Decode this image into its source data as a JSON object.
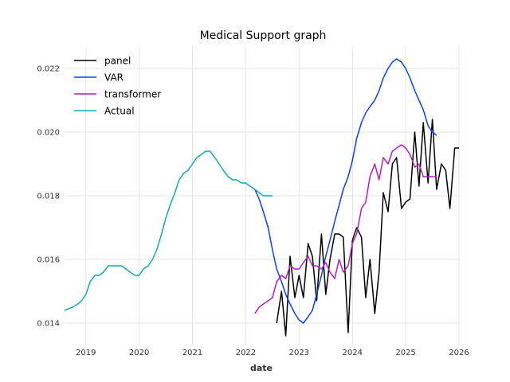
{
  "chart_data": {
    "type": "line",
    "title": "Medical Support graph",
    "xlabel": "date",
    "ylabel": "",
    "xlim": [
      2018.6,
      2026.0
    ],
    "ylim": [
      0.0133,
      0.0227
    ],
    "x_ticks": [
      2019,
      2020,
      2021,
      2022,
      2023,
      2024,
      2025,
      2026
    ],
    "x_tick_labels": [
      "2019",
      "2020",
      "2021",
      "2022",
      "2023",
      "2024",
      "2025",
      "2026"
    ],
    "y_ticks": [
      0.014,
      0.016,
      0.018,
      0.02,
      0.022
    ],
    "y_tick_labels": [
      "0.014",
      "0.016",
      "0.018",
      "0.020",
      "0.022"
    ],
    "grid": true,
    "legend_position": "top-left",
    "series": [
      {
        "name": "panel",
        "color": "#000000",
        "x": [
          2022.58,
          2022.67,
          2022.75,
          2022.83,
          2022.92,
          2023.0,
          2023.08,
          2023.17,
          2023.25,
          2023.33,
          2023.42,
          2023.5,
          2023.58,
          2023.67,
          2023.75,
          2023.83,
          2023.92,
          2024.0,
          2024.08,
          2024.17,
          2024.25,
          2024.33,
          2024.42,
          2024.5,
          2024.58,
          2024.67,
          2024.75,
          2024.83,
          2024.92,
          2025.0,
          2025.08,
          2025.17,
          2025.25,
          2025.33,
          2025.42,
          2025.5,
          2025.58,
          2025.67,
          2025.75,
          2025.83,
          2025.92,
          2026.0
        ],
        "values": [
          0.014,
          0.015,
          0.0136,
          0.0161,
          0.0148,
          0.0155,
          0.0148,
          0.0165,
          0.0161,
          0.0147,
          0.0168,
          0.0149,
          0.016,
          0.0168,
          0.0168,
          0.0167,
          0.0137,
          0.0166,
          0.017,
          0.0167,
          0.0148,
          0.016,
          0.0143,
          0.0156,
          0.0181,
          0.0175,
          0.019,
          0.0192,
          0.0176,
          0.0178,
          0.0179,
          0.02,
          0.0183,
          0.0203,
          0.0184,
          0.0204,
          0.0182,
          0.019,
          0.0188,
          0.0176,
          0.0195,
          0.0195
        ]
      },
      {
        "name": "VAR",
        "color": "#0b3ff0",
        "x": [
          2022.17,
          2022.25,
          2022.33,
          2022.42,
          2022.5,
          2022.58,
          2022.67,
          2022.75,
          2022.83,
          2022.92,
          2023.0,
          2023.08,
          2023.17,
          2023.25,
          2023.33,
          2023.42,
          2023.5,
          2023.58,
          2023.67,
          2023.75,
          2023.83,
          2023.92,
          2024.0,
          2024.08,
          2024.17,
          2024.25,
          2024.33,
          2024.42,
          2024.5,
          2024.58,
          2024.67,
          2024.75,
          2024.83,
          2024.92,
          2025.0,
          2025.08,
          2025.17,
          2025.25,
          2025.33,
          2025.42,
          2025.5,
          2025.58
        ],
        "values": [
          0.0182,
          0.0179,
          0.0175,
          0.017,
          0.0163,
          0.0157,
          0.0153,
          0.0149,
          0.0146,
          0.0143,
          0.0141,
          0.014,
          0.0142,
          0.0144,
          0.0149,
          0.0155,
          0.0161,
          0.0166,
          0.0172,
          0.0177,
          0.0182,
          0.0186,
          0.0191,
          0.0198,
          0.0203,
          0.0206,
          0.0208,
          0.021,
          0.0213,
          0.0217,
          0.022,
          0.0222,
          0.0223,
          0.0222,
          0.022,
          0.0217,
          0.0213,
          0.021,
          0.0207,
          0.0202,
          0.02,
          0.0199
        ]
      },
      {
        "name": "transformer",
        "color": "#b31fb8",
        "x": [
          2022.17,
          2022.25,
          2022.33,
          2022.42,
          2022.5,
          2022.58,
          2022.67,
          2022.75,
          2022.83,
          2022.92,
          2023.0,
          2023.08,
          2023.17,
          2023.25,
          2023.33,
          2023.42,
          2023.5,
          2023.58,
          2023.67,
          2023.75,
          2023.83,
          2023.92,
          2024.0,
          2024.08,
          2024.17,
          2024.25,
          2024.33,
          2024.42,
          2024.5,
          2024.58,
          2024.67,
          2024.75,
          2024.83,
          2024.92,
          2025.0,
          2025.08,
          2025.17,
          2025.25,
          2025.33,
          2025.42,
          2025.5,
          2025.58
        ],
        "values": [
          0.0143,
          0.0145,
          0.0146,
          0.0147,
          0.0148,
          0.0153,
          0.0155,
          0.0154,
          0.0158,
          0.0157,
          0.0157,
          0.0159,
          0.0161,
          0.0158,
          0.0158,
          0.0157,
          0.0159,
          0.0156,
          0.0154,
          0.016,
          0.0156,
          0.0158,
          0.0165,
          0.0168,
          0.0176,
          0.0178,
          0.0186,
          0.019,
          0.0185,
          0.0192,
          0.019,
          0.0194,
          0.0195,
          0.0196,
          0.0195,
          0.0193,
          0.0189,
          0.019,
          0.0186,
          0.0186,
          0.0186,
          0.0186
        ]
      },
      {
        "name": "Actual",
        "color": "#12a8b5",
        "x": [
          2018.6,
          2018.75,
          2018.85,
          2018.92,
          2019.0,
          2019.08,
          2019.17,
          2019.25,
          2019.33,
          2019.42,
          2019.5,
          2019.58,
          2019.67,
          2019.75,
          2019.83,
          2019.92,
          2020.0,
          2020.08,
          2020.17,
          2020.25,
          2020.33,
          2020.42,
          2020.5,
          2020.58,
          2020.67,
          2020.75,
          2020.83,
          2020.92,
          2021.0,
          2021.08,
          2021.17,
          2021.25,
          2021.33,
          2021.42,
          2021.5,
          2021.58,
          2021.67,
          2021.75,
          2021.83,
          2021.92,
          2022.0,
          2022.08,
          2022.17,
          2022.25,
          2022.33,
          2022.42,
          2022.5
        ],
        "values": [
          0.0144,
          0.0145,
          0.0146,
          0.0147,
          0.0149,
          0.0153,
          0.0155,
          0.0155,
          0.0156,
          0.0158,
          0.0158,
          0.0158,
          0.0158,
          0.0157,
          0.0156,
          0.0155,
          0.0155,
          0.0157,
          0.0158,
          0.016,
          0.0163,
          0.0168,
          0.0173,
          0.0177,
          0.0181,
          0.0185,
          0.0187,
          0.0188,
          0.019,
          0.0192,
          0.0193,
          0.0194,
          0.0194,
          0.0192,
          0.019,
          0.0188,
          0.0186,
          0.0185,
          0.0185,
          0.0184,
          0.0184,
          0.0183,
          0.0182,
          0.0181,
          0.018,
          0.018,
          0.018
        ]
      }
    ]
  }
}
